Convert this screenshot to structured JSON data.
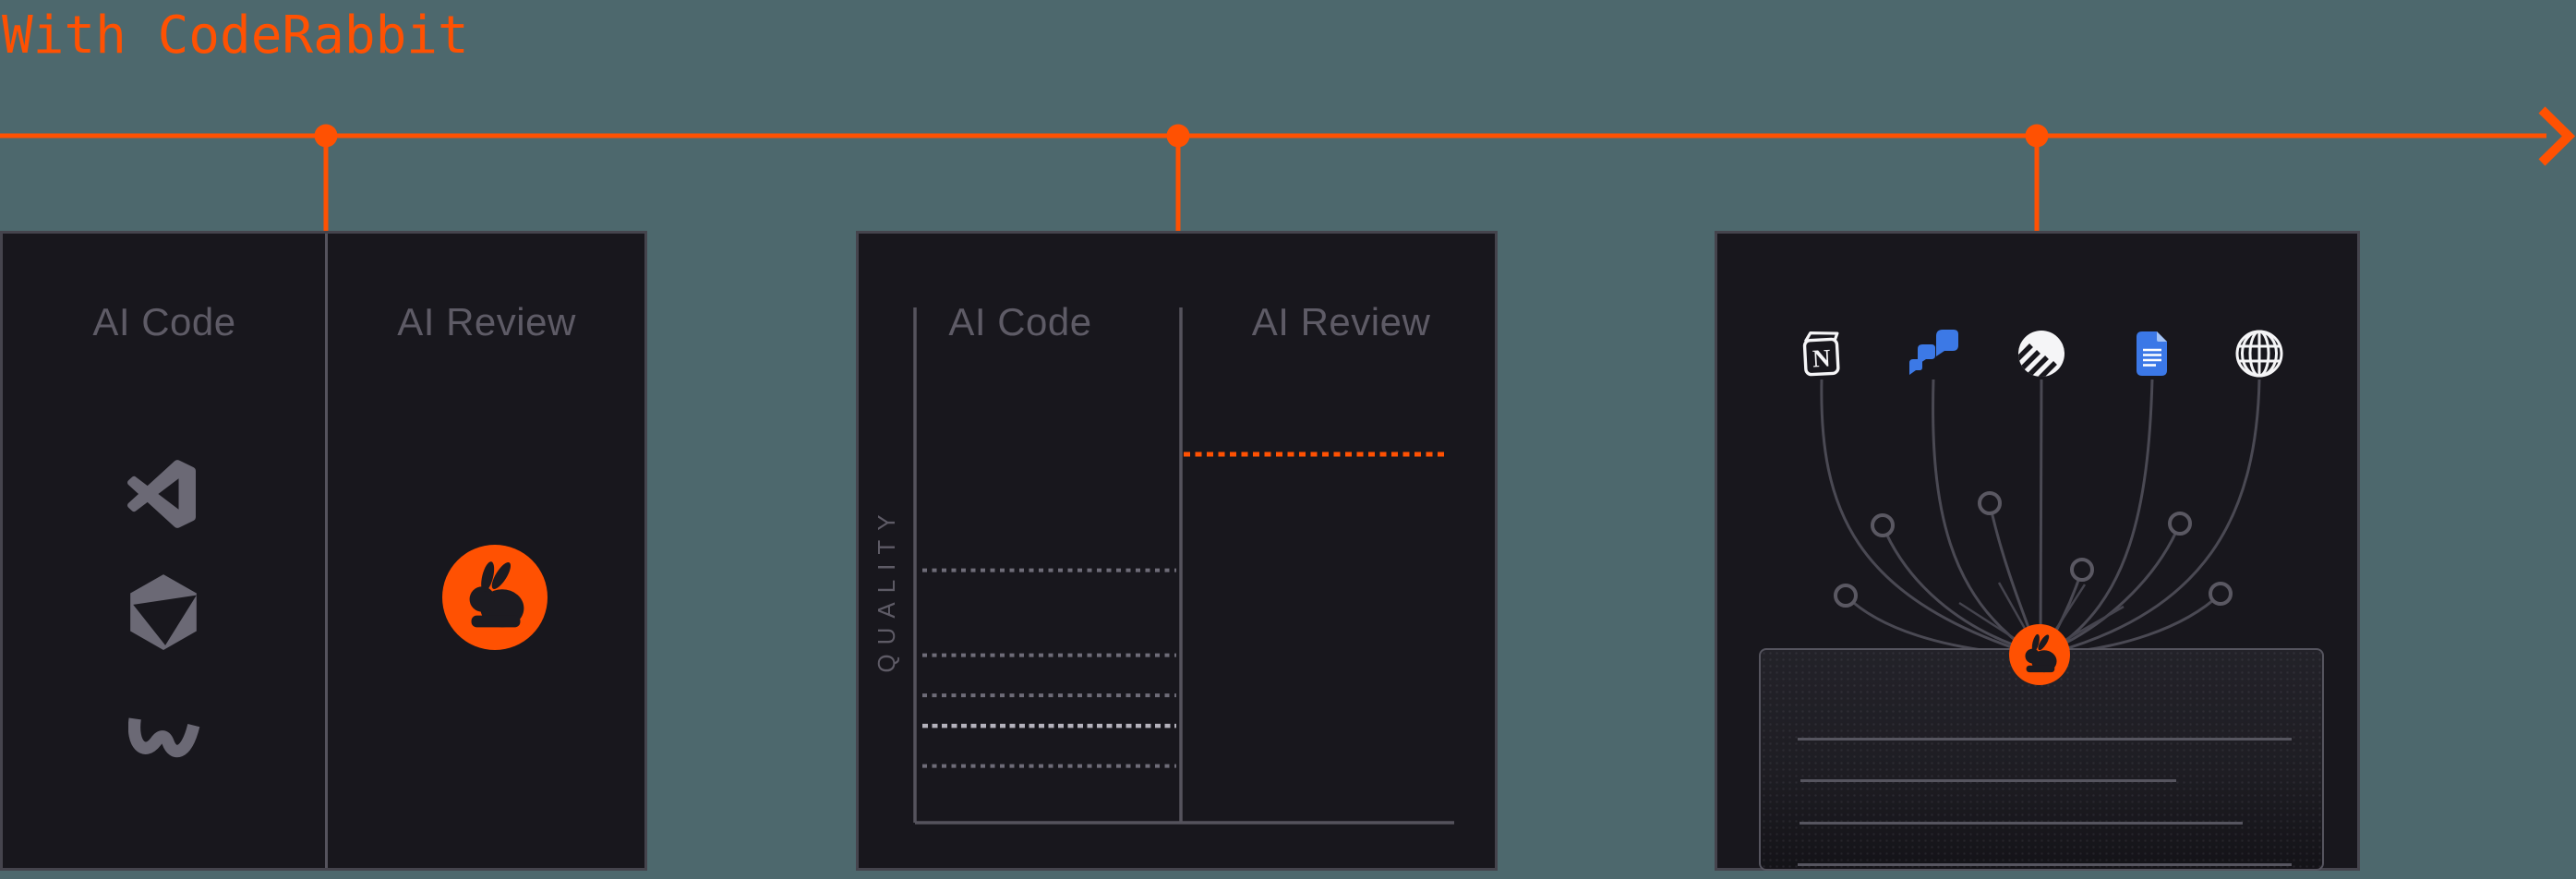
{
  "title": "With CodeRabbit",
  "colors": {
    "accent_orange": "#ff5102",
    "page_background": "#4d686d",
    "panel_background": "#18171d",
    "panel_border": "#45444d",
    "muted_text": "#5e5b66",
    "icon_gray": "#6b6975",
    "line_gray": "#55535d",
    "bright_dash": "#b4b2bc",
    "white": "#f5f5f7",
    "jira_blue": "#3c79e6",
    "docs_blue": "#3b78e7",
    "docs_fold": "#a5c4f5"
  },
  "timeline": {
    "direction": "right-arrow",
    "stops": [
      {
        "name": "editors-panel",
        "x": 353
      },
      {
        "name": "chart-panel",
        "x": 1276
      },
      {
        "name": "context-panel",
        "x": 2206
      }
    ]
  },
  "panels": {
    "editors": {
      "left_header": "AI Code",
      "right_header": "AI Review",
      "left_icons": [
        "vscode-icon",
        "cursor-icon",
        "windsurf-icon"
      ],
      "right_icon": "coderabbit-logo-icon"
    },
    "chart": {
      "left_header": "AI Code",
      "right_header": "AI Review"
    },
    "context": {
      "source_icons": [
        "notion-icon",
        "jira-icon",
        "linear-icon",
        "google-docs-icon",
        "web-icon"
      ],
      "hub_icon": "coderabbit-logo-icon",
      "node_ring_count": 6
    }
  },
  "chart_data": {
    "type": "line",
    "title": "",
    "ylabel": "QUALITY",
    "x_sections": [
      "AI Code",
      "AI Review"
    ],
    "ylim": [
      0,
      100
    ],
    "grid": false,
    "legend": false,
    "series": [
      {
        "name": "AI Code quality (inconsistent levels)",
        "section": "AI Code",
        "style": "dashed",
        "color": "#6e6c78",
        "levels_pct": [
          49.0,
          32.5,
          24.7,
          18.8,
          11.0
        ],
        "emphasized_index": 3,
        "emphasized_color": "#b4b2bc"
      },
      {
        "name": "AI Review quality (CodeRabbit)",
        "section": "AI Review",
        "style": "dashed",
        "color": "#ff5102",
        "levels_pct": [
          71.5
        ]
      }
    ]
  }
}
